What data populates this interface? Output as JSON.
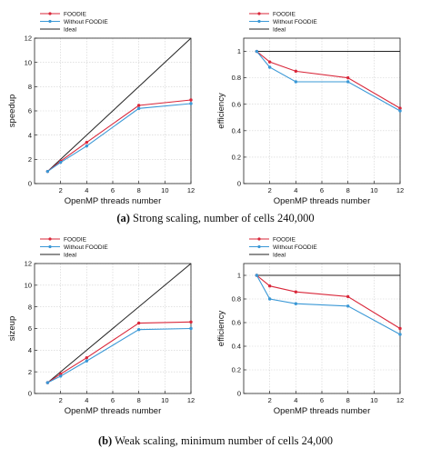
{
  "colors": {
    "foodie": "#d9273a",
    "without": "#3a98d6",
    "ideal": "#222222"
  },
  "captions": [
    {
      "label": "(a)",
      "text": " Strong scaling, number of cells 240,000"
    },
    {
      "label": "(b)",
      "text": " Weak scaling, minimum number of cells 24,000"
    }
  ],
  "chart_data": [
    {
      "type": "line",
      "panel": "a-left",
      "xlabel": "OpenMP threads number",
      "ylabel": "speedup",
      "xlim": [
        0,
        12
      ],
      "ylim": [
        0,
        12
      ],
      "xticks": [
        2,
        4,
        6,
        8,
        10,
        12
      ],
      "yticks": [
        0,
        2,
        4,
        6,
        8,
        10,
        12
      ],
      "ytick_labels": [
        "0",
        "2",
        "4",
        "6",
        "8",
        "10",
        "12"
      ],
      "grid": true,
      "legend": "top-left",
      "x": [
        1,
        2,
        4,
        8,
        12
      ],
      "series": [
        {
          "name": "FOODIE",
          "color": "#d9273a",
          "marker": true,
          "values": [
            1,
            1.85,
            3.4,
            6.45,
            6.9
          ]
        },
        {
          "name": "Without FOODIE",
          "color": "#3a98d6",
          "marker": true,
          "values": [
            1,
            1.75,
            3.1,
            6.2,
            6.6
          ]
        },
        {
          "name": "Ideal",
          "color": "#222222",
          "marker": false,
          "x": [
            1,
            12
          ],
          "values": [
            1,
            12
          ]
        }
      ]
    },
    {
      "type": "line",
      "panel": "a-right",
      "xlabel": "OpenMP threads number",
      "ylabel": "efficiency",
      "xlim": [
        0,
        12
      ],
      "ylim": [
        0,
        1.1
      ],
      "xticks": [
        2,
        4,
        6,
        8,
        10,
        12
      ],
      "yticks": [
        0,
        0.2,
        0.4,
        0.6,
        0.8,
        1
      ],
      "ytick_labels": [
        "0",
        "0.2",
        "0.4",
        "0.6",
        "0.8",
        "1"
      ],
      "grid": true,
      "legend": "top-left",
      "x": [
        1,
        2,
        4,
        8,
        12
      ],
      "series": [
        {
          "name": "FOODIE",
          "color": "#d9273a",
          "marker": true,
          "values": [
            1,
            0.92,
            0.85,
            0.8,
            0.57
          ]
        },
        {
          "name": "Without FOODIE",
          "color": "#3a98d6",
          "marker": true,
          "values": [
            1,
            0.88,
            0.77,
            0.77,
            0.55
          ]
        },
        {
          "name": "Ideal",
          "color": "#222222",
          "marker": false,
          "x": [
            1,
            12
          ],
          "values": [
            1,
            1
          ]
        }
      ]
    },
    {
      "type": "line",
      "panel": "b-left",
      "xlabel": "OpenMP threads number",
      "ylabel": "sizeup",
      "xlim": [
        0,
        12
      ],
      "ylim": [
        0,
        12
      ],
      "xticks": [
        2,
        4,
        6,
        8,
        10,
        12
      ],
      "yticks": [
        0,
        2,
        4,
        6,
        8,
        10,
        12
      ],
      "ytick_labels": [
        "0",
        "2",
        "4",
        "6",
        "8",
        "10",
        "12"
      ],
      "grid": true,
      "legend": "top-left",
      "x": [
        1,
        2,
        4,
        8,
        12
      ],
      "series": [
        {
          "name": "FOODIE",
          "color": "#d9273a",
          "marker": true,
          "values": [
            1,
            1.8,
            3.3,
            6.5,
            6.6
          ]
        },
        {
          "name": "Without FOODIE",
          "color": "#3a98d6",
          "marker": true,
          "values": [
            1,
            1.6,
            3.0,
            5.9,
            6.0
          ]
        },
        {
          "name": "Ideal",
          "color": "#222222",
          "marker": false,
          "x": [
            1,
            12
          ],
          "values": [
            1,
            12
          ]
        }
      ]
    },
    {
      "type": "line",
      "panel": "b-right",
      "xlabel": "OpenMP threads number",
      "ylabel": "efficiency",
      "xlim": [
        0,
        12
      ],
      "ylim": [
        0,
        1.1
      ],
      "xticks": [
        2,
        4,
        6,
        8,
        10,
        12
      ],
      "yticks": [
        0,
        0.2,
        0.4,
        0.6,
        0.8,
        1
      ],
      "ytick_labels": [
        "0",
        "0.2",
        "0.4",
        "0.6",
        "0.8",
        "1"
      ],
      "grid": true,
      "legend": "top-left",
      "x": [
        1,
        2,
        4,
        8,
        12
      ],
      "series": [
        {
          "name": "FOODIE",
          "color": "#d9273a",
          "marker": true,
          "values": [
            1,
            0.91,
            0.86,
            0.82,
            0.55
          ]
        },
        {
          "name": "Without FOODIE",
          "color": "#3a98d6",
          "marker": true,
          "values": [
            1,
            0.8,
            0.76,
            0.74,
            0.5
          ]
        },
        {
          "name": "Ideal",
          "color": "#222222",
          "marker": false,
          "x": [
            1,
            12
          ],
          "values": [
            1,
            1
          ]
        }
      ]
    }
  ]
}
